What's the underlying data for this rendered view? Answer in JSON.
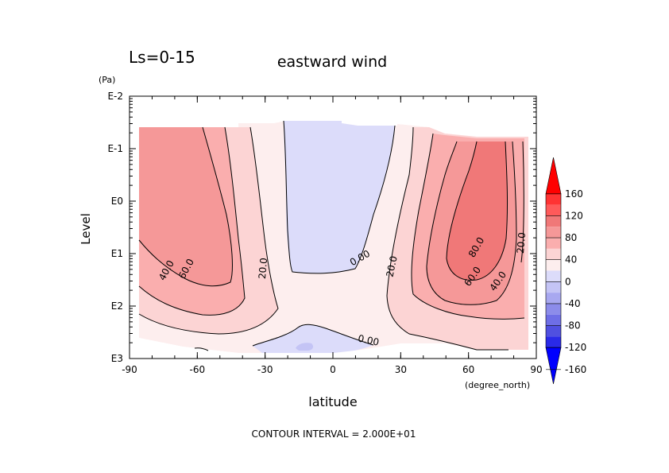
{
  "chart_data": {
    "type": "contour",
    "title": "eastward wind",
    "subtitle": "Ls=0-15",
    "xlabel": "latitude",
    "x_unit": "(degree_north)",
    "ylabel": "Level",
    "y_unit": "(Pa)",
    "xlim": [
      -90,
      90
    ],
    "ylim": [
      "E3",
      "E-2"
    ],
    "y_scale": "log",
    "x_ticks": [
      "-90",
      "-60",
      "-30",
      "0",
      "30",
      "60",
      "90"
    ],
    "y_ticks": [
      "E3",
      "E2",
      "E1",
      "E0",
      "E-1",
      "E-2"
    ],
    "footer": "CONTOUR INTERVAL = 2.000E+01",
    "contour_labels": [
      "60.0",
      "40.0",
      "20.0",
      "0.00",
      "20.0",
      "80.0",
      "60.0",
      "40.0",
      "20.0",
      "0.00"
    ],
    "colorbar": {
      "labels": [
        "160",
        "120",
        "80",
        "40",
        "0",
        "-40",
        "-80",
        "-120",
        "-160"
      ],
      "levels": [
        {
          "min": 140,
          "max": 160,
          "color": "#ff0000"
        },
        {
          "min": 120,
          "max": 140,
          "color": "#ff3333"
        },
        {
          "min": 100,
          "max": 120,
          "color": "#ff5a5a"
        },
        {
          "min": 80,
          "max": 100,
          "color": "#f07878"
        },
        {
          "min": 60,
          "max": 80,
          "color": "#f59898"
        },
        {
          "min": 40,
          "max": 60,
          "color": "#faaeae"
        },
        {
          "min": 20,
          "max": 40,
          "color": "#fcd4d4"
        },
        {
          "min": 0,
          "max": 20,
          "color": "#fdeeee"
        },
        {
          "min": -20,
          "max": 0,
          "color": "#dcdcfa"
        },
        {
          "min": -40,
          "max": -20,
          "color": "#c4c4f5"
        },
        {
          "min": -60,
          "max": -40,
          "color": "#a8a8f0"
        },
        {
          "min": -80,
          "max": -60,
          "color": "#8c8cea"
        },
        {
          "min": -100,
          "max": -80,
          "color": "#6e6ee6"
        },
        {
          "min": -120,
          "max": -100,
          "color": "#5050e0"
        },
        {
          "min": -140,
          "max": -120,
          "color": "#2a2ae8"
        },
        {
          "min": -160,
          "max": -140,
          "color": "#0000ff"
        }
      ]
    }
  }
}
